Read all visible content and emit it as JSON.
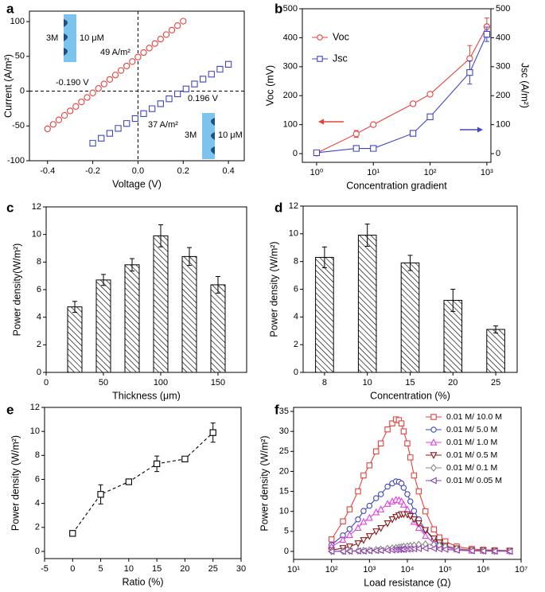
{
  "chart_data": [
    {
      "panel_label": "a",
      "type": "scatter",
      "x_label": "Voltage (V)",
      "y_label": "Current (A/m²)",
      "xlim": [
        -0.48,
        0.47
      ],
      "ylim": [
        -100,
        115
      ],
      "xticks": [
        -0.4,
        -0.2,
        {
          "value": 0,
          "label": "0.0"
        },
        0.2,
        0.4
      ],
      "yticks": [
        -100,
        -50,
        0,
        50,
        100
      ],
      "annotations": [
        "3M",
        "10 μM",
        "49 A/m²",
        "-0.190 V",
        "0.196 V",
        "37 A/m²",
        "3M",
        "10 μM"
      ],
      "series": [
        {
          "color": "#e8413c",
          "marker": "circle",
          "x": [
            -0.4,
            -0.375,
            -0.35,
            -0.325,
            -0.3,
            -0.275,
            -0.25,
            -0.225,
            -0.2,
            -0.175,
            -0.15,
            -0.125,
            -0.1,
            -0.075,
            -0.05,
            -0.025,
            0,
            0.025,
            0.05,
            0.075,
            0.1,
            0.125,
            0.15,
            0.175,
            0.2
          ],
          "values": [
            -54.2,
            -47.8,
            -41.3,
            -34.9,
            -28.4,
            -22.0,
            -15.5,
            -9.1,
            -2.6,
            3.9,
            10.3,
            16.8,
            23.2,
            29.7,
            36.1,
            42.6,
            49,
            55.5,
            61.9,
            68.4,
            74.8,
            81.3,
            87.7,
            94.2,
            100.6
          ]
        },
        {
          "color": "#3f47c4",
          "marker": "square",
          "x": [
            -0.2,
            -0.1625,
            -0.125,
            -0.0875,
            -0.05,
            -0.0125,
            0.025,
            0.0625,
            0.1,
            0.1375,
            0.175,
            0.2125,
            0.25,
            0.2875,
            0.325,
            0.3625,
            0.4
          ],
          "values": [
            -74.8,
            -67.7,
            -60.6,
            -53.5,
            -46.5,
            -39.4,
            -32.3,
            -25.2,
            -18.1,
            -11.0,
            -3.9,
            3.2,
            10.3,
            17.3,
            24.4,
            31.5,
            38.6
          ]
        }
      ]
    },
    {
      "panel_label": "b",
      "type": "line",
      "x_label": "Concentration gradient",
      "y_label": "Voc (mV)",
      "y2_label": "Jsc (A/m²)",
      "xlog": true,
      "xlim": [
        0.56,
        1180
      ],
      "ylim": [
        -30,
        500
      ],
      "y2lim": [
        -30,
        500
      ],
      "xticks": [
        {
          "value": 1,
          "label": "10⁰"
        },
        {
          "value": 10,
          "label": "10¹"
        },
        {
          "value": 100,
          "label": "10²"
        },
        {
          "value": 1000,
          "label": "10³"
        }
      ],
      "yticks": [
        0,
        100,
        200,
        300,
        400,
        500
      ],
      "y2ticks": [
        0,
        100,
        200,
        300,
        400,
        500
      ],
      "legend": "upper left",
      "x": [
        1,
        5,
        10,
        50,
        100,
        500,
        1000
      ],
      "series": [
        {
          "name": "Voc",
          "color": "#e8413c",
          "marker": "circle",
          "values": [
            2,
            68,
            100,
            172,
            205,
            328,
            438
          ],
          "errors": [
            3,
            12,
            5,
            5,
            5,
            45,
            30
          ]
        },
        {
          "name": "Jsc",
          "color": "#3f47c4",
          "marker": "square",
          "axis": "y2",
          "values": [
            3,
            18,
            18,
            70,
            127,
            280,
            412
          ],
          "errors": [
            3,
            3,
            3,
            5,
            5,
            40,
            25
          ]
        }
      ]
    },
    {
      "panel_label": "c",
      "type": "bar",
      "x_label": "Thickness (μm)",
      "y_label": "Power density(W/m²)",
      "xlim": [
        0,
        175
      ],
      "ylim": [
        0,
        12
      ],
      "xticks": [
        0,
        50,
        100,
        150
      ],
      "yticks": [
        0,
        2,
        4,
        6,
        8,
        10,
        12
      ],
      "x": [
        25,
        50,
        75,
        100,
        125,
        150
      ],
      "values": [
        4.75,
        6.7,
        7.8,
        9.9,
        8.4,
        6.35
      ],
      "errors": [
        0.4,
        0.4,
        0.45,
        0.8,
        0.65,
        0.6
      ],
      "color": "#000000"
    },
    {
      "panel_label": "d",
      "type": "bar",
      "x_label": "Concentration (%)",
      "y_label": "Power density (W/m²)",
      "ylim": [
        0,
        12
      ],
      "yticks": [
        0,
        2,
        4,
        6,
        8,
        10,
        12
      ],
      "categories": [
        "8",
        "10",
        "15",
        "20",
        "25"
      ],
      "values": [
        8.3,
        9.9,
        7.9,
        5.2,
        3.1
      ],
      "errors": [
        0.75,
        0.8,
        0.55,
        0.8,
        0.25
      ],
      "color": "#000000"
    },
    {
      "panel_label": "e",
      "type": "line",
      "x_label": "Ratio (%)",
      "y_label": "Power density (W/m²)",
      "line_style": "dashed",
      "xlim": [
        -5,
        30
      ],
      "ylim": [
        -0.6,
        12
      ],
      "xticks": [
        -5,
        0,
        5,
        10,
        15,
        20,
        25,
        30
      ],
      "yticks": [
        0,
        2,
        4,
        6,
        8,
        10,
        12
      ],
      "x": [
        0,
        5,
        10,
        15,
        20,
        25
      ],
      "series": [
        {
          "color": "#000000",
          "marker": "square",
          "values": [
            1.5,
            4.75,
            5.8,
            7.3,
            7.7,
            9.9
          ],
          "errors": [
            0.1,
            0.8,
            0.15,
            0.65,
            0.2,
            0.8
          ]
        }
      ]
    },
    {
      "panel_label": "f",
      "type": "line",
      "x_label": "Load resistance (Ω)",
      "y_label": "Power density (W/m²)",
      "xlog": true,
      "xlim": [
        10,
        10000000
      ],
      "ylim": [
        -2,
        36
      ],
      "legend": "upper right",
      "xticks": [
        {
          "value": 10,
          "label": "10¹"
        },
        {
          "value": 100,
          "label": "10²"
        },
        {
          "value": 1000,
          "label": "10³"
        },
        {
          "value": 10000,
          "label": "10⁴"
        },
        {
          "value": 100000,
          "label": "10⁵"
        },
        {
          "value": 1000000,
          "label": "10⁶"
        },
        {
          "value": 10000000,
          "label": "10⁷"
        }
      ],
      "yticks": [
        0,
        5,
        10,
        15,
        20,
        25,
        30,
        35
      ],
      "x": [
        100,
        200,
        300,
        500,
        700,
        1000,
        1500,
        2000,
        3000,
        4000,
        5000,
        6000,
        7000,
        8000,
        10000,
        12000,
        15000,
        20000,
        30000,
        50000,
        70000,
        100000,
        200000,
        500000,
        1000000,
        2000000,
        5000000
      ],
      "series": [
        {
          "name": "0.01 M/ 10.0 M",
          "color": "#e8413c",
          "marker": "square",
          "values": [
            3,
            7.5,
            10.5,
            15,
            19,
            21.5,
            25,
            27,
            30.5,
            32,
            33,
            32.8,
            32,
            30,
            27,
            23.5,
            19,
            15,
            10,
            5.5,
            3.5,
            2.5,
            1.2,
            0.6,
            0.4,
            0.3,
            0.2
          ]
        },
        {
          "name": "0.01 M/ 5.0 M",
          "color": "#3f47c4",
          "marker": "circle",
          "values": [
            1.6,
            4,
            5.6,
            8,
            10.1,
            11.4,
            13.3,
            14.3,
            16.2,
            17,
            17.5,
            17.4,
            17,
            15.9,
            14.3,
            12.5,
            10.1,
            8,
            5.3,
            2.9,
            1.9,
            1.3,
            0.6,
            0.3,
            0.2,
            0.2,
            0.1
          ]
        },
        {
          "name": "0.01 M/ 1.0 M",
          "color": "#e040e0",
          "marker": "triangle-up",
          "values": [
            1.2,
            2.9,
            4.1,
            5.9,
            7.4,
            8.4,
            9.8,
            10.5,
            11.9,
            12.5,
            12.9,
            12.8,
            12.5,
            11.7,
            10.5,
            9.2,
            7.4,
            5.9,
            3.9,
            2.1,
            1.4,
            1,
            0.5,
            0.2,
            0.2,
            0.1,
            0.1
          ]
        },
        {
          "name": "0.01 M/ 0.5 M",
          "color": "#8b1a1a",
          "marker": "triangle-down",
          "values": [
            0.3,
            0.8,
            1.2,
            2,
            2.8,
            3.8,
            5,
            5.8,
            7,
            8,
            8.6,
            9,
            9.3,
            9.3,
            9.2,
            8.8,
            8,
            7,
            5.3,
            3.2,
            2.2,
            1.4,
            0.7,
            0.3,
            0.2,
            0.1,
            0.1
          ]
        },
        {
          "name": "0.01 M/ 0.1 M",
          "color": "#888888",
          "marker": "diamond",
          "values": [
            0,
            0.05,
            0.1,
            0.15,
            0.2,
            0.3,
            0.4,
            0.5,
            0.7,
            0.8,
            0.9,
            1,
            1.1,
            1.2,
            1.3,
            1.4,
            1.5,
            1.7,
            1.8,
            1.7,
            1.5,
            1.2,
            0.7,
            0.3,
            0.2,
            0.1,
            0.1
          ]
        },
        {
          "name": "0.01 M/ 0.05 M",
          "color": "#8a3fa8",
          "marker": "triangle-left",
          "values": [
            0,
            0,
            0.05,
            0.1,
            0.1,
            0.15,
            0.2,
            0.25,
            0.3,
            0.35,
            0.4,
            0.45,
            0.5,
            0.5,
            0.55,
            0.6,
            0.65,
            0.7,
            0.75,
            0.7,
            0.6,
            0.5,
            0.3,
            0.15,
            0.1,
            0.05,
            0
          ]
        }
      ]
    }
  ]
}
